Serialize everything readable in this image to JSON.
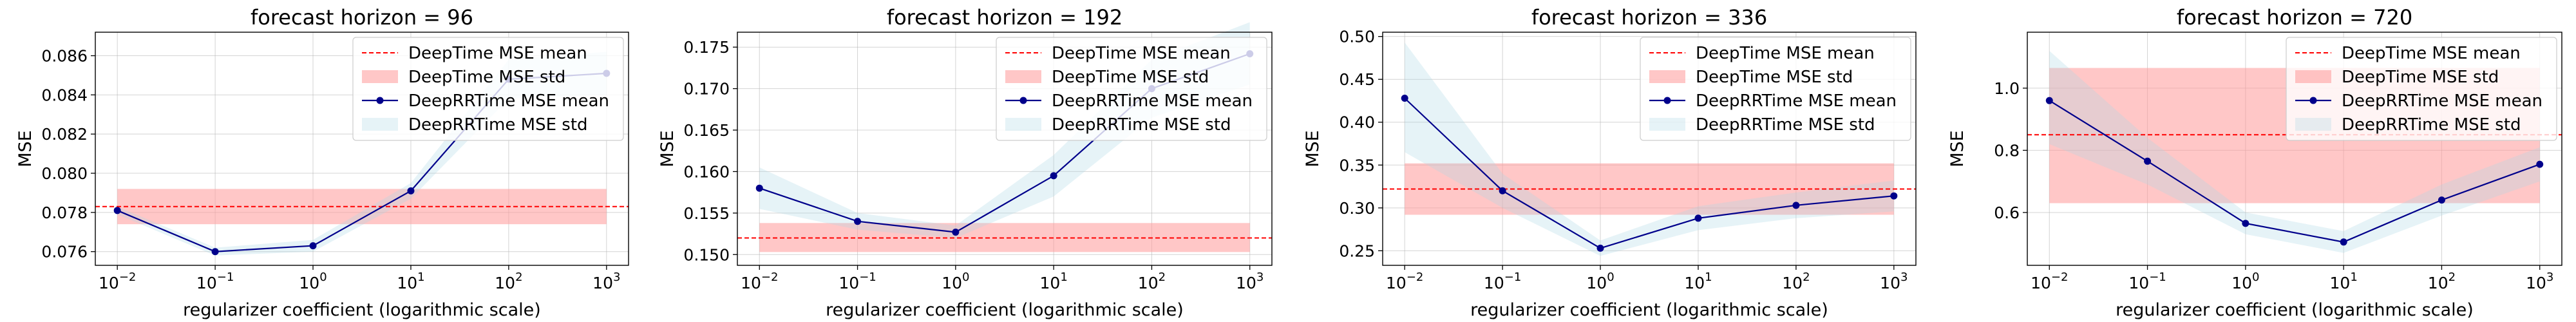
{
  "chart_data": [
    {
      "type": "line",
      "title": "forecast horizon = 96",
      "xlabel": "regularizer coefficient (logarithmic scale)",
      "ylabel": "MSE",
      "xscale": "log",
      "x": [
        0.01,
        0.1,
        1,
        10,
        100,
        1000
      ],
      "xticks": [
        "10−2",
        "10−1",
        "100",
        "101",
        "102",
        "103"
      ],
      "ylim": [
        0.0753,
        0.0872
      ],
      "yticks": [
        0.076,
        0.078,
        0.08,
        0.082,
        0.084,
        0.086
      ],
      "ytick_labels": [
        "0.076",
        "0.078",
        "0.080",
        "0.082",
        "0.084",
        "0.086"
      ],
      "grid": true,
      "legend_position": "upper right",
      "series": [
        {
          "name": "DeepTime MSE mean",
          "kind": "hline",
          "value": 0.0783,
          "color": "#ff0000"
        },
        {
          "name": "DeepTime MSE std",
          "kind": "hband",
          "low": 0.0774,
          "high": 0.0792,
          "color": "#ff9999"
        },
        {
          "name": "DeepRRTime MSE mean",
          "kind": "line",
          "values": [
            0.0781,
            0.076,
            0.0763,
            0.0791,
            0.0848,
            0.0851
          ],
          "color": "#00008b"
        },
        {
          "name": "DeepRRTime MSE std",
          "kind": "band",
          "low": [
            0.0779,
            0.0758,
            0.076,
            0.0787,
            0.0838,
            0.084
          ],
          "high": [
            0.0783,
            0.0762,
            0.0766,
            0.0795,
            0.0858,
            0.0862
          ],
          "color": "#add8e6"
        }
      ]
    },
    {
      "type": "line",
      "title": "forecast horizon = 192",
      "xlabel": "regularizer coefficient (logarithmic scale)",
      "ylabel": "MSE",
      "xscale": "log",
      "x": [
        0.01,
        0.1,
        1,
        10,
        100,
        1000
      ],
      "xticks": [
        "10−2",
        "10−1",
        "100",
        "101",
        "102",
        "103"
      ],
      "ylim": [
        0.1487,
        0.1768
      ],
      "yticks": [
        0.15,
        0.155,
        0.16,
        0.165,
        0.17,
        0.175
      ],
      "ytick_labels": [
        "0.150",
        "0.155",
        "0.160",
        "0.165",
        "0.170",
        "0.175"
      ],
      "grid": true,
      "legend_position": "upper right",
      "series": [
        {
          "name": "DeepTime MSE mean",
          "kind": "hline",
          "value": 0.152,
          "color": "#ff0000"
        },
        {
          "name": "DeepTime MSE std",
          "kind": "hband",
          "low": 0.1503,
          "high": 0.1538,
          "color": "#ff9999"
        },
        {
          "name": "DeepRRTime MSE mean",
          "kind": "line",
          "values": [
            0.158,
            0.154,
            0.1527,
            0.1595,
            0.17,
            0.1742
          ],
          "color": "#00008b"
        },
        {
          "name": "DeepRRTime MSE std",
          "kind": "band",
          "low": [
            0.1555,
            0.153,
            0.152,
            0.157,
            0.1665,
            0.1705
          ],
          "high": [
            0.1605,
            0.155,
            0.1535,
            0.162,
            0.1735,
            0.178
          ],
          "color": "#add8e6"
        }
      ]
    },
    {
      "type": "line",
      "title": "forecast horizon = 336",
      "xlabel": "regularizer coefficient (logarithmic scale)",
      "ylabel": "MSE",
      "xscale": "log",
      "x": [
        0.01,
        0.1,
        1,
        10,
        100,
        1000
      ],
      "xticks": [
        "10−2",
        "10−1",
        "100",
        "101",
        "102",
        "103"
      ],
      "ylim": [
        0.233,
        0.505
      ],
      "yticks": [
        0.25,
        0.3,
        0.35,
        0.4,
        0.45,
        0.5
      ],
      "ytick_labels": [
        "0.25",
        "0.30",
        "0.35",
        "0.40",
        "0.45",
        "0.50"
      ],
      "grid": true,
      "legend_position": "upper right",
      "series": [
        {
          "name": "DeepTime MSE mean",
          "kind": "hline",
          "value": 0.322,
          "color": "#ff0000"
        },
        {
          "name": "DeepTime MSE std",
          "kind": "hband",
          "low": 0.292,
          "high": 0.352,
          "color": "#ff9999"
        },
        {
          "name": "DeepRRTime MSE mean",
          "kind": "line",
          "values": [
            0.428,
            0.32,
            0.253,
            0.288,
            0.303,
            0.314
          ],
          "color": "#00008b"
        },
        {
          "name": "DeepRRTime MSE std",
          "kind": "band",
          "low": [
            0.365,
            0.3,
            0.244,
            0.274,
            0.288,
            0.296
          ],
          "high": [
            0.493,
            0.34,
            0.262,
            0.302,
            0.318,
            0.332
          ],
          "color": "#add8e6"
        }
      ]
    },
    {
      "type": "line",
      "title": "forecast horizon = 720",
      "xlabel": "regularizer coefficient (logarithmic scale)",
      "ylabel": "MSE",
      "xscale": "log",
      "x": [
        0.01,
        0.1,
        1,
        10,
        100,
        1000
      ],
      "xticks": [
        "10−2",
        "10−1",
        "100",
        "101",
        "102",
        "103"
      ],
      "ylim": [
        0.43,
        1.18
      ],
      "yticks": [
        0.6,
        0.8,
        1.0
      ],
      "ytick_labels": [
        "0.6",
        "0.8",
        "1.0"
      ],
      "grid": true,
      "legend_position": "upper right",
      "series": [
        {
          "name": "DeepTime MSE mean",
          "kind": "hline",
          "value": 0.85,
          "color": "#ff0000"
        },
        {
          "name": "DeepTime MSE std",
          "kind": "hband",
          "low": 0.63,
          "high": 1.065,
          "color": "#ff9999"
        },
        {
          "name": "DeepRRTime MSE mean",
          "kind": "line",
          "values": [
            0.96,
            0.765,
            0.565,
            0.505,
            0.64,
            0.755
          ],
          "color": "#00008b"
        },
        {
          "name": "DeepRRTime MSE std",
          "kind": "band",
          "low": [
            0.82,
            0.69,
            0.53,
            0.47,
            0.59,
            0.7
          ],
          "high": [
            1.12,
            0.84,
            0.6,
            0.54,
            0.69,
            0.81
          ],
          "color": "#add8e6"
        }
      ]
    }
  ]
}
